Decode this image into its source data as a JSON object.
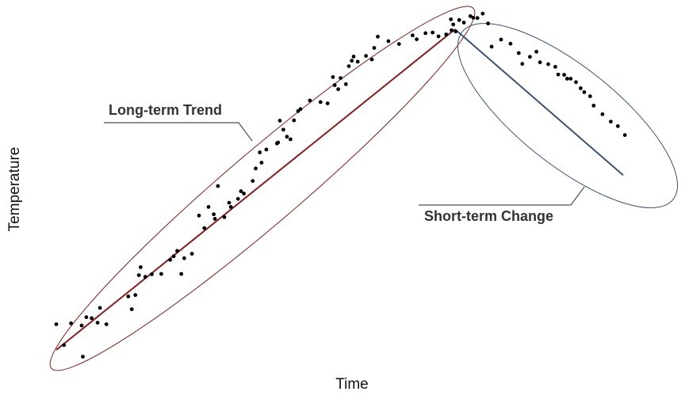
{
  "colors": {
    "long_trend": "#8b1a1a",
    "short_trend": "#3a5074",
    "points": "#000000",
    "leader": "#222222"
  },
  "chart_data": {
    "type": "scatter",
    "title": "",
    "xlabel": "Time",
    "ylabel": "Temperature",
    "grid": false,
    "legend": "none",
    "xlim": [
      0,
      100
    ],
    "ylim": [
      0,
      100
    ],
    "annotations": {
      "long_term": "Long-term Trend",
      "short_term": "Short-term Change"
    },
    "trend_lines": [
      {
        "id": "long-term",
        "x": [
          0,
          67.6
        ],
        "y": [
          0,
          100
        ]
      },
      {
        "id": "short-term",
        "x": [
          67.6,
          96.1
        ],
        "y": [
          100,
          54.5
        ]
      }
    ],
    "series": [
      {
        "values": [
          [
            0,
            8
          ],
          [
            1.3,
            1.5
          ],
          [
            2.5,
            8.3
          ],
          [
            4.3,
            7.6
          ],
          [
            4.5,
            -2.1
          ],
          [
            5.1,
            10.2
          ],
          [
            6.0,
            9.9
          ],
          [
            7.0,
            8.5
          ],
          [
            7.4,
            13.1
          ],
          [
            8.5,
            8.0
          ],
          [
            12.2,
            16.7
          ],
          [
            12.8,
            12.7
          ],
          [
            13.4,
            17.1
          ],
          [
            14.0,
            23.3
          ],
          [
            14.3,
            25.8
          ],
          [
            15.1,
            22.8
          ],
          [
            16.2,
            23.6
          ],
          [
            17.8,
            23.7
          ],
          [
            19.3,
            28.1
          ],
          [
            19.9,
            29.2
          ],
          [
            20.5,
            30.9
          ],
          [
            21.2,
            23.7
          ],
          [
            21.7,
            28.6
          ],
          [
            23.0,
            30.0
          ],
          [
            24.2,
            41.9
          ],
          [
            25.1,
            38.0
          ],
          [
            25.8,
            44.6
          ],
          [
            26.7,
            42.3
          ],
          [
            26.9,
            40.9
          ],
          [
            27.4,
            51.1
          ],
          [
            28.5,
            41.4
          ],
          [
            29.3,
            45.9
          ],
          [
            29.6,
            44.6
          ],
          [
            30.8,
            47.1
          ],
          [
            31.3,
            49.5
          ],
          [
            31.8,
            48.8
          ],
          [
            33.3,
            52.7
          ],
          [
            33.8,
            56.6
          ],
          [
            34.5,
            61.6
          ],
          [
            34.8,
            58.4
          ],
          [
            35.6,
            62.5
          ],
          [
            37.4,
            64.4
          ],
          [
            37.6,
            64.7
          ],
          [
            37.9,
            71.5
          ],
          [
            38.5,
            68.7
          ],
          [
            39.1,
            66.5
          ],
          [
            39.7,
            65.7
          ],
          [
            40.3,
            71.6
          ],
          [
            41.0,
            74.5
          ],
          [
            41.4,
            75.1
          ],
          [
            43.0,
            77.8
          ],
          [
            44.8,
            77.3
          ],
          [
            46.0,
            76.9
          ],
          [
            46.9,
            85.1
          ],
          [
            47.2,
            82.6
          ],
          [
            47.8,
            81.3
          ],
          [
            48.2,
            84.8
          ],
          [
            49.1,
            82.9
          ],
          [
            49.6,
            88.5
          ],
          [
            50.1,
            90.2
          ],
          [
            50.4,
            91.5
          ],
          [
            51.1,
            89.9
          ],
          [
            52.5,
            91.7
          ],
          [
            53.5,
            90.6
          ],
          [
            53.9,
            94.2
          ],
          [
            54.5,
            97.7
          ],
          [
            56.3,
            96.3
          ],
          [
            58.1,
            95.4
          ],
          [
            60.4,
            98.1
          ],
          [
            61.1,
            96.9
          ],
          [
            62.6,
            98.8
          ],
          [
            63.8,
            99.0
          ],
          [
            64.8,
            97.8
          ],
          [
            66.1,
            98.4
          ],
          [
            67.0,
            99.7
          ],
          [
            67.7,
            99.3
          ]
        ]
      },
      {
        "values": [
          [
            66.9,
            103.1
          ],
          [
            67.3,
            101.5
          ],
          [
            68.3,
            102.9
          ],
          [
            69.1,
            102.1
          ],
          [
            70.2,
            104.1
          ],
          [
            70.7,
            103.6
          ],
          [
            71.4,
            103.5
          ],
          [
            72.3,
            104.9
          ],
          [
            73.2,
            101.8
          ],
          [
            73.8,
            94.6
          ],
          [
            75.4,
            96.8
          ],
          [
            77.0,
            95.5
          ],
          [
            78.4,
            92.6
          ],
          [
            79.0,
            89.2
          ],
          [
            80.3,
            91.4
          ],
          [
            81.4,
            93.0
          ],
          [
            82.0,
            89.7
          ],
          [
            83.4,
            89.1
          ],
          [
            84.6,
            88.3
          ],
          [
            85.1,
            85.9
          ],
          [
            86.1,
            85.8
          ],
          [
            86.6,
            84.6
          ],
          [
            87.2,
            84.6
          ],
          [
            88.1,
            83.5
          ],
          [
            88.9,
            81.6
          ],
          [
            89.5,
            80.4
          ],
          [
            90.5,
            79.1
          ],
          [
            91.1,
            76.2
          ],
          [
            92.6,
            73.5
          ],
          [
            94.0,
            71.2
          ],
          [
            95.2,
            69.8
          ],
          [
            96.4,
            67.0
          ]
        ]
      }
    ]
  }
}
